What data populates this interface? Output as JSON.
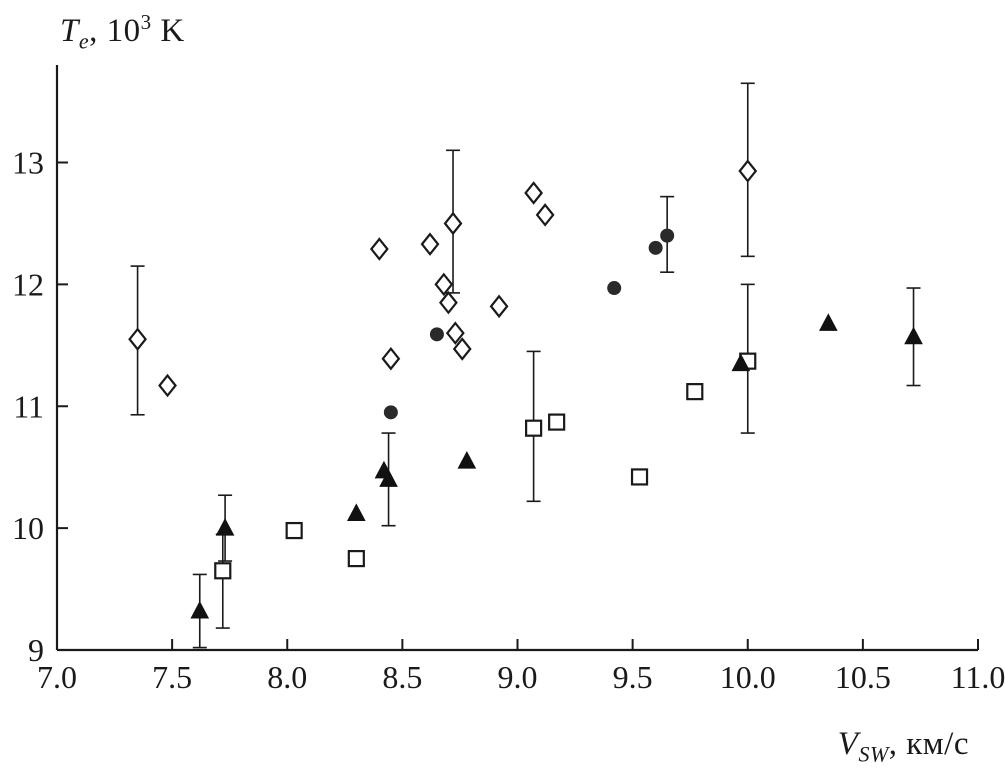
{
  "labels": {
    "y_var": "T",
    "y_sub": "e",
    "y_mid": ", 10",
    "y_sup": "3",
    "y_unit": " K",
    "x_var": "V",
    "x_sub": "SW",
    "x_unit": ", км/с"
  },
  "chart_data": {
    "type": "scatter",
    "title": "",
    "xlabel": "V_SW, км/с",
    "ylabel": "T_e, 10^3 K",
    "xlim": [
      7.0,
      11.0
    ],
    "ylim": [
      9.0,
      13.8
    ],
    "grid": false,
    "legend": "none",
    "axis_color": "#1a1a1a",
    "marker_color": "#1a1a1a",
    "xticks": [
      {
        "v": 7.0,
        "label": "7.0"
      },
      {
        "v": 7.5,
        "label": "7.5"
      },
      {
        "v": 8.0,
        "label": "8.0"
      },
      {
        "v": 8.5,
        "label": "8.5"
      },
      {
        "v": 9.0,
        "label": "9.0"
      },
      {
        "v": 9.5,
        "label": "9.5"
      },
      {
        "v": 10.0,
        "label": "10.0"
      },
      {
        "v": 10.5,
        "label": "10.5"
      },
      {
        "v": 11.0,
        "label": "11.0"
      }
    ],
    "yticks": [
      {
        "v": 9,
        "label": "9"
      },
      {
        "v": 10,
        "label": "10"
      },
      {
        "v": 11,
        "label": "11"
      },
      {
        "v": 12,
        "label": "12"
      },
      {
        "v": 13,
        "label": "13"
      }
    ],
    "series": [
      {
        "name": "open-diamond",
        "marker": "diamond",
        "fill": "#ffffff",
        "points": [
          {
            "x": 7.35,
            "y": 11.55,
            "err": [
              10.93,
              12.15
            ]
          },
          {
            "x": 7.48,
            "y": 11.17
          },
          {
            "x": 8.4,
            "y": 12.29
          },
          {
            "x": 8.45,
            "y": 11.39
          },
          {
            "x": 8.62,
            "y": 12.33
          },
          {
            "x": 8.68,
            "y": 12.0
          },
          {
            "x": 8.7,
            "y": 11.85
          },
          {
            "x": 8.72,
            "y": 12.5,
            "err": [
              11.93,
              13.1
            ]
          },
          {
            "x": 8.73,
            "y": 11.6
          },
          {
            "x": 8.76,
            "y": 11.47
          },
          {
            "x": 8.92,
            "y": 11.82
          },
          {
            "x": 9.07,
            "y": 12.75
          },
          {
            "x": 9.12,
            "y": 12.57
          },
          {
            "x": 10.0,
            "y": 12.93,
            "err": [
              12.23,
              13.65
            ]
          }
        ]
      },
      {
        "name": "filled-circle",
        "marker": "circle",
        "fill": "#2a2a2a",
        "points": [
          {
            "x": 8.45,
            "y": 10.95
          },
          {
            "x": 8.65,
            "y": 11.59
          },
          {
            "x": 9.42,
            "y": 11.97
          },
          {
            "x": 9.6,
            "y": 12.3
          },
          {
            "x": 9.65,
            "y": 12.4,
            "err": [
              12.1,
              12.72
            ]
          }
        ]
      },
      {
        "name": "open-square",
        "marker": "square",
        "fill": "#ffffff",
        "points": [
          {
            "x": 7.72,
            "y": 9.65,
            "err": [
              9.18,
              9.95
            ]
          },
          {
            "x": 8.03,
            "y": 9.98
          },
          {
            "x": 8.3,
            "y": 9.75
          },
          {
            "x": 9.07,
            "y": 10.82,
            "err": [
              10.22,
              11.45
            ]
          },
          {
            "x": 9.17,
            "y": 10.87
          },
          {
            "x": 9.53,
            "y": 10.42
          },
          {
            "x": 9.77,
            "y": 11.12
          },
          {
            "x": 10.0,
            "y": 11.37,
            "err": [
              10.78,
              12.0
            ]
          }
        ]
      },
      {
        "name": "filled-triangle",
        "marker": "triangle",
        "fill": "#111111",
        "points": [
          {
            "x": 7.62,
            "y": 9.32,
            "err": [
              9.02,
              9.62
            ]
          },
          {
            "x": 7.73,
            "y": 10.0,
            "err": [
              9.73,
              10.27
            ]
          },
          {
            "x": 8.3,
            "y": 10.12
          },
          {
            "x": 8.42,
            "y": 10.47
          },
          {
            "x": 8.44,
            "y": 10.4,
            "err": [
              10.02,
              10.78
            ]
          },
          {
            "x": 8.78,
            "y": 10.55
          },
          {
            "x": 9.97,
            "y": 11.35
          },
          {
            "x": 10.35,
            "y": 11.68
          },
          {
            "x": 10.72,
            "y": 11.57,
            "err": [
              11.17,
              11.97
            ]
          }
        ]
      }
    ]
  }
}
